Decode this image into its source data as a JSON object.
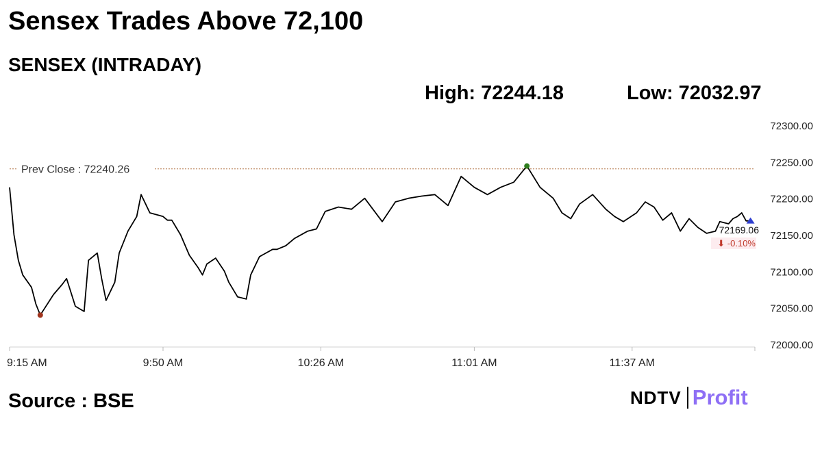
{
  "headline": "Sensex Trades Above 72,100",
  "subtitle": "SENSEX (INTRADAY)",
  "stats": {
    "high_label": "High:",
    "high_value": "72244.18",
    "low_label": "Low:",
    "low_value": "72032.97"
  },
  "source": "Source : BSE",
  "logo": {
    "brand": "NDTV",
    "product": "Profit",
    "product_color": "#8e6ff5"
  },
  "chart_data": {
    "type": "line",
    "title": "SENSEX (INTRADAY)",
    "xlabel": "",
    "ylabel": "",
    "ylim": [
      72000,
      72300
    ],
    "yticks": [
      "72300.00",
      "72250.00",
      "72200.00",
      "72150.00",
      "72100.00",
      "72050.00",
      "72000.00"
    ],
    "xticks": [
      "9:15 AM",
      "9:50 AM",
      "10:26 AM",
      "11:01 AM",
      "11:37 AM"
    ],
    "grid": false,
    "prev_close": {
      "label": "Prev Close : 72240.26",
      "value": 72240.26,
      "color": "#b07040"
    },
    "last": {
      "value_label": "72169.06",
      "change_label": "⬇ -0.10%",
      "change_color": "#c0392b"
    },
    "markers": {
      "low_color": "#a0341e",
      "high_color": "#2e7d1e",
      "last_color": "#2f3fd0"
    },
    "series": [
      {
        "line_color": "#000000",
        "x": [
          "9:15",
          "9:16",
          "9:17",
          "9:18",
          "9:20",
          "9:21",
          "9:22",
          "9:25",
          "9:27",
          "9:28",
          "9:30",
          "9:32",
          "9:33",
          "9:35",
          "9:36",
          "9:37",
          "9:39",
          "9:40",
          "9:42",
          "9:44",
          "9:45",
          "9:47",
          "9:50",
          "9:51",
          "9:52",
          "9:54",
          "9:56",
          "9:58",
          "9:59",
          "10:00",
          "10:02",
          "10:04",
          "10:05",
          "10:07",
          "10:09",
          "10:10",
          "10:12",
          "10:15",
          "10:16",
          "10:18",
          "10:20",
          "10:23",
          "10:25",
          "10:27",
          "10:30",
          "10:33",
          "10:36",
          "10:40",
          "10:43",
          "10:46",
          "10:49",
          "10:52",
          "10:55",
          "10:58",
          "11:01",
          "11:04",
          "11:07",
          "11:10",
          "11:13",
          "11:16",
          "11:19",
          "11:21",
          "11:23",
          "11:25",
          "11:28",
          "11:31",
          "11:33",
          "11:35",
          "11:38",
          "11:40",
          "11:42",
          "11:44",
          "11:46",
          "11:48",
          "11:50",
          "11:52",
          "11:54",
          "11:56",
          "11:57",
          "11:59",
          "12:00",
          "12:01",
          "12:02",
          "12:03",
          "12:04"
        ],
        "values": [
          72215,
          72150,
          72115,
          72095,
          72078,
          72055,
          72040,
          72068,
          72082,
          72090,
          72052,
          72045,
          72115,
          72125,
          72090,
          72060,
          72085,
          72125,
          72155,
          72175,
          72205,
          72180,
          72175,
          72170,
          72170,
          72150,
          72122,
          72105,
          72095,
          72110,
          72118,
          72100,
          72085,
          72065,
          72062,
          72095,
          72120,
          72130,
          72130,
          72135,
          72145,
          72155,
          72158,
          72182,
          72188,
          72185,
          72200,
          72168,
          72195,
          72200,
          72203,
          72205,
          72190,
          72230,
          72215,
          72205,
          72215,
          72222,
          72244.18,
          72215,
          72200,
          72180,
          72172,
          72192,
          72205,
          72185,
          72175,
          72168,
          72180,
          72195,
          72188,
          72170,
          72180,
          72155,
          72172,
          72160,
          72152,
          72155,
          72168,
          72165,
          72172,
          72175,
          72180,
          72169.06,
          72169.06
        ]
      }
    ]
  }
}
